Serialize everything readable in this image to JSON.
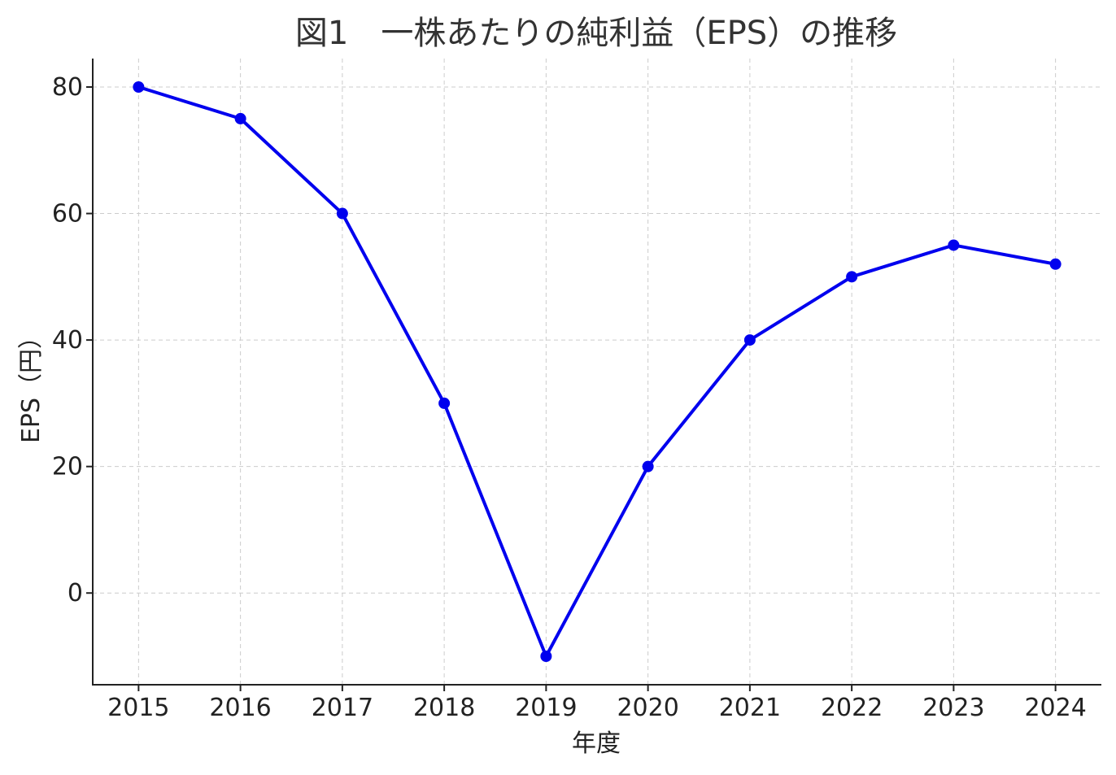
{
  "chart_data": {
    "type": "line",
    "title": "図1　一株あたりの純利益（EPS）の推移",
    "xlabel": "年度",
    "ylabel": "EPS（円）",
    "x": [
      2015,
      2016,
      2017,
      2018,
      2019,
      2020,
      2021,
      2022,
      2023,
      2024
    ],
    "x_tick_labels": [
      "2015",
      "2016",
      "2017",
      "2018",
      "2019",
      "2020",
      "2021",
      "2022",
      "2023",
      "2024"
    ],
    "y_ticks": [
      0,
      20,
      40,
      60,
      80
    ],
    "y_tick_labels": [
      "0",
      "20",
      "40",
      "60",
      "80"
    ],
    "ylim": [
      -14.5,
      84.5
    ],
    "xlim": [
      2014.55,
      2024.45
    ],
    "grid": true,
    "series": [
      {
        "values": [
          80,
          75,
          60,
          30,
          -10,
          20,
          40,
          50,
          55,
          52
        ],
        "color": "#0000ee",
        "marker": "circle"
      }
    ]
  },
  "colors": {
    "series": "#0000ee",
    "grid": "#cccccc",
    "axis": "#222222",
    "title": "#333333"
  }
}
